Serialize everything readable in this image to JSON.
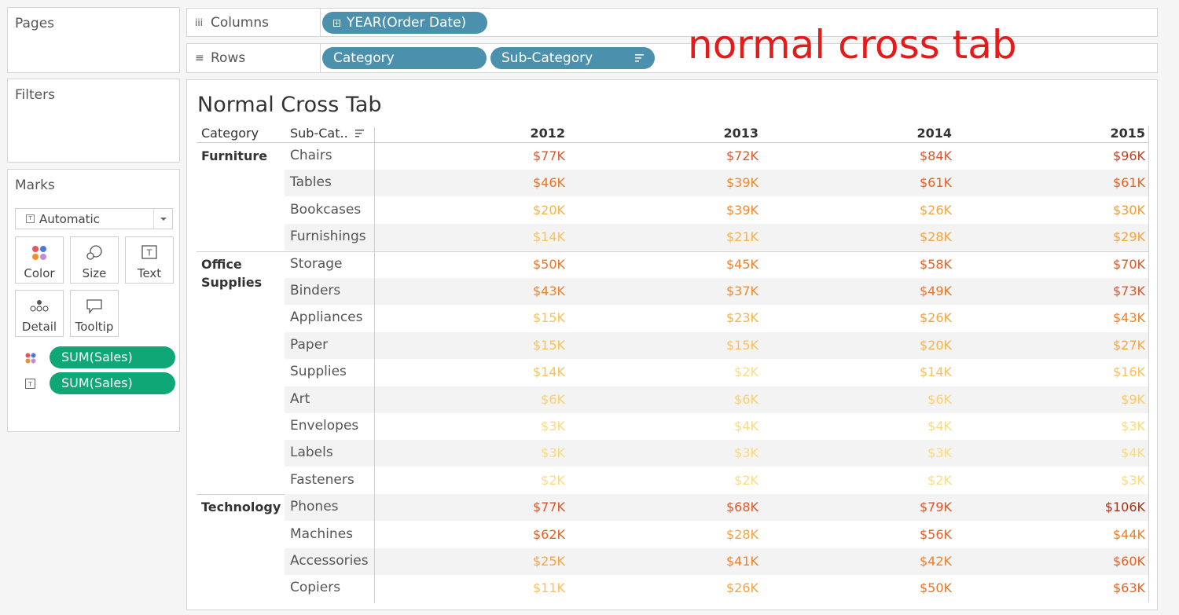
{
  "sidebar": {
    "pages_title": "Pages",
    "filters_title": "Filters",
    "marks_title": "Marks",
    "mark_type": "Automatic",
    "mark_buttons": [
      "Color",
      "Size",
      "Text",
      "Detail",
      "Tooltip"
    ],
    "mark_pills": [
      "SUM(Sales)",
      "SUM(Sales)"
    ]
  },
  "shelves": {
    "columns_label": "Columns",
    "rows_label": "Rows",
    "columns_pills": [
      "YEAR(Order Date)"
    ],
    "rows_pills": [
      "Category",
      "Sub-Category"
    ]
  },
  "annotation": "normal cross tab",
  "viz": {
    "title": "Normal Cross Tab",
    "headers": {
      "category": "Category",
      "subcategory": "Sub-Cat..",
      "years": [
        "2012",
        "2013",
        "2014",
        "2015"
      ]
    },
    "groups": [
      {
        "category": "Furniture",
        "rows": [
          {
            "sub": "Chairs",
            "values": [
              "$77K",
              "$72K",
              "$84K",
              "$96K"
            ],
            "colors": [
              "#d9582a",
              "#d9582a",
              "#d9582a",
              "#b8431f"
            ]
          },
          {
            "sub": "Tables",
            "values": [
              "$46K",
              "$39K",
              "$61K",
              "$61K"
            ],
            "colors": [
              "#e9752a",
              "#ef8a2e",
              "#e06327",
              "#e06327"
            ]
          },
          {
            "sub": "Bookcases",
            "values": [
              "$20K",
              "$39K",
              "$26K",
              "$30K"
            ],
            "colors": [
              "#f6b34b",
              "#ef8a2e",
              "#f4a441",
              "#f39a3a"
            ]
          },
          {
            "sub": "Furnishings",
            "values": [
              "$14K",
              "$21K",
              "$28K",
              "$29K"
            ],
            "colors": [
              "#f7c25a",
              "#f6b34b",
              "#f4a441",
              "#f4a441"
            ]
          }
        ]
      },
      {
        "category": "Office\nSupplies",
        "rows": [
          {
            "sub": "Storage",
            "values": [
              "$50K",
              "$45K",
              "$58K",
              "$70K"
            ],
            "colors": [
              "#e9752a",
              "#ed812c",
              "#e06327",
              "#d9582a"
            ]
          },
          {
            "sub": "Binders",
            "values": [
              "$43K",
              "$37K",
              "$49K",
              "$73K"
            ],
            "colors": [
              "#ed812c",
              "#ef8a2e",
              "#e9752a",
              "#d9582a"
            ]
          },
          {
            "sub": "Appliances",
            "values": [
              "$15K",
              "$23K",
              "$26K",
              "$43K"
            ],
            "colors": [
              "#f7c25a",
              "#f6b34b",
              "#f4a441",
              "#ed812c"
            ]
          },
          {
            "sub": "Paper",
            "values": [
              "$15K",
              "$15K",
              "$20K",
              "$27K"
            ],
            "colors": [
              "#f7c25a",
              "#f7c25a",
              "#f6b34b",
              "#f4a441"
            ]
          },
          {
            "sub": "Supplies",
            "values": [
              "$14K",
              "$2K",
              "$14K",
              "$16K"
            ],
            "colors": [
              "#f7c25a",
              "#fbdc84",
              "#f7c25a",
              "#f7c25a"
            ]
          },
          {
            "sub": "Art",
            "values": [
              "$6K",
              "$6K",
              "$6K",
              "$9K"
            ],
            "colors": [
              "#f9d070",
              "#f9d070",
              "#f9d070",
              "#f9ca64"
            ]
          },
          {
            "sub": "Envelopes",
            "values": [
              "$3K",
              "$4K",
              "$4K",
              "$3K"
            ],
            "colors": [
              "#fbd97c",
              "#fbd97c",
              "#fbd97c",
              "#fbd97c"
            ]
          },
          {
            "sub": "Labels",
            "values": [
              "$3K",
              "$3K",
              "$3K",
              "$4K"
            ],
            "colors": [
              "#fbd97c",
              "#fbd97c",
              "#fbd97c",
              "#fbd97c"
            ]
          },
          {
            "sub": "Fasteners",
            "values": [
              "$2K",
              "$2K",
              "$2K",
              "$3K"
            ],
            "colors": [
              "#fbdc84",
              "#fbdc84",
              "#fbdc84",
              "#fbd97c"
            ]
          }
        ]
      },
      {
        "category": "Technology",
        "rows": [
          {
            "sub": "Phones",
            "values": [
              "$77K",
              "$68K",
              "$79K",
              "$106K"
            ],
            "colors": [
              "#d9582a",
              "#d9582a",
              "#d9582a",
              "#9f3419"
            ]
          },
          {
            "sub": "Machines",
            "values": [
              "$62K",
              "$28K",
              "$56K",
              "$44K"
            ],
            "colors": [
              "#e06327",
              "#f4a441",
              "#e06327",
              "#ed812c"
            ]
          },
          {
            "sub": "Accessories",
            "values": [
              "$25K",
              "$41K",
              "$42K",
              "$60K"
            ],
            "colors": [
              "#f4a441",
              "#ed812c",
              "#ed812c",
              "#e06327"
            ]
          },
          {
            "sub": "Copiers",
            "values": [
              "$11K",
              "$26K",
              "$50K",
              "$63K"
            ],
            "colors": [
              "#f7c25a",
              "#f4a441",
              "#e9752a",
              "#e06327"
            ]
          }
        ]
      }
    ]
  }
}
